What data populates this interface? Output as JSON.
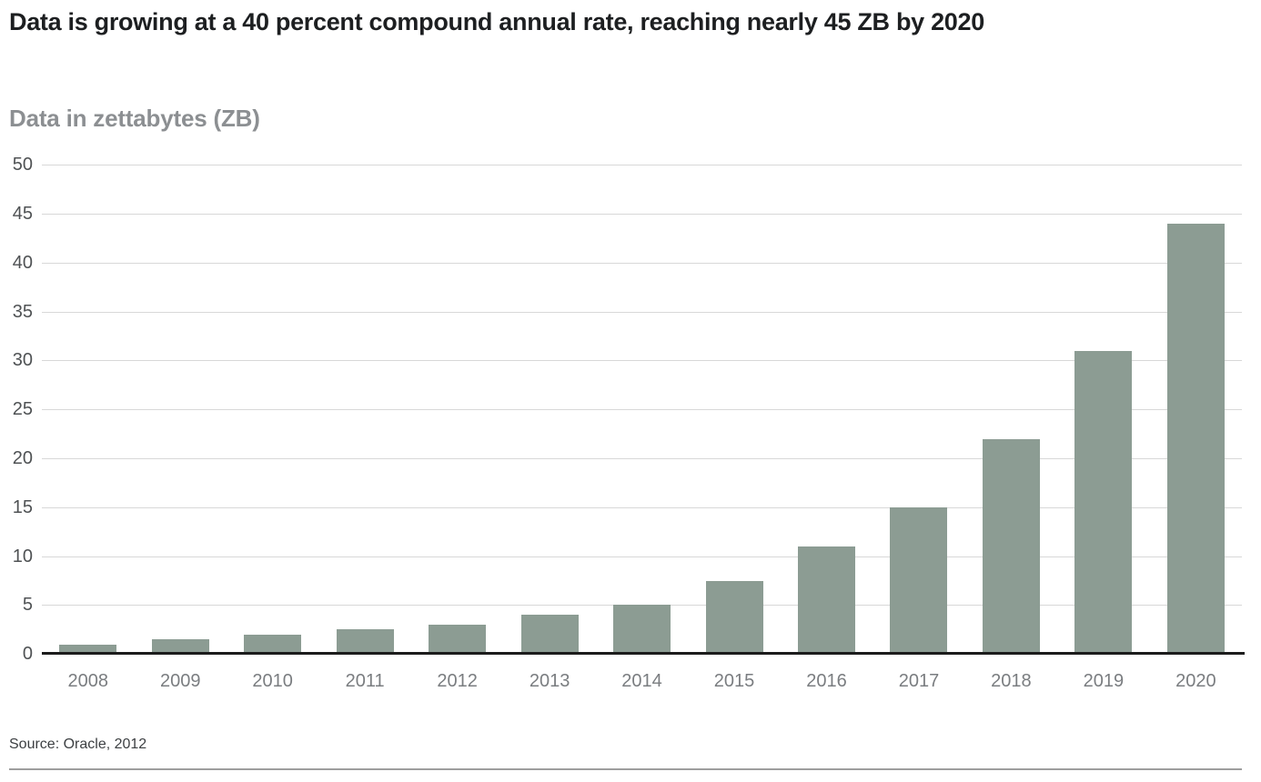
{
  "chart_data": {
    "type": "bar",
    "title": "Data is growing at a 40 percent compound annual rate, reaching nearly 45 ZB by 2020",
    "subtitle": "Data in zettabytes (ZB)",
    "categories": [
      "2008",
      "2009",
      "2010",
      "2011",
      "2012",
      "2013",
      "2014",
      "2015",
      "2016",
      "2017",
      "2018",
      "2019",
      "2020"
    ],
    "values": [
      1,
      1.5,
      2,
      2.5,
      3,
      4,
      5,
      7.5,
      11,
      15,
      22,
      31,
      44
    ],
    "xlabel": "",
    "ylabel": "ZB",
    "ylim": [
      0,
      50
    ],
    "yticks": [
      0,
      5,
      10,
      15,
      20,
      25,
      30,
      35,
      40,
      45,
      50
    ],
    "grid": true,
    "legend": false,
    "bar_color": "#8c9c93",
    "axis_line_color": "#1c1c1c",
    "grid_color": "#d8d8d8"
  },
  "source": {
    "label": "Source: Oracle, 2012"
  }
}
